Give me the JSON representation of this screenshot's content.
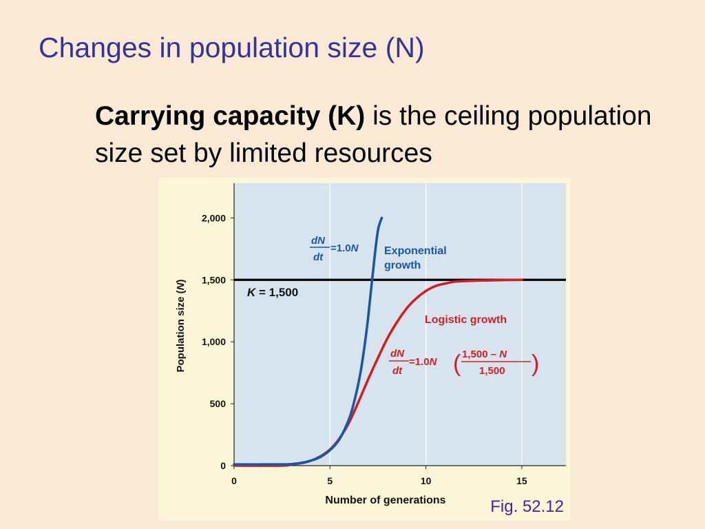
{
  "slide": {
    "title": "Changes in population size (N)",
    "body_bold": "Carrying capacity (K)",
    "body_rest": " is the ceiling population size set by limited resources",
    "figure_caption": "Fig. 52.12"
  },
  "colors": {
    "background": "#fae9d4",
    "title": "#33339a",
    "plot_bg": "#d7e4ee",
    "figure_bg": "#fcf6d8",
    "exponential": "#1a56a6",
    "logistic": "#d01e24",
    "capacity_line": "#000000",
    "caption": "#4a1f9a"
  },
  "chart_data": {
    "type": "line",
    "xlabel": "Number of generations",
    "ylabel_prefix": "Population size (",
    "ylabel_var": "N",
    "ylabel_suffix": ")",
    "xlim": [
      0,
      17.3
    ],
    "ylim": [
      0,
      2280
    ],
    "xticks": [
      0,
      5,
      10,
      15
    ],
    "yticks": [
      0,
      500,
      1000,
      1500,
      2000
    ],
    "xtick_labels": [
      "0",
      "5",
      "10",
      "15"
    ],
    "ytick_labels": [
      "0",
      "500",
      "1,000",
      "1,500",
      "2,000"
    ],
    "grid": "vertical lines at x ticks",
    "carrying_capacity": {
      "value": 1500,
      "label_var": "K",
      "label_rest": " = 1,500"
    },
    "series": [
      {
        "id": "exponential",
        "label_line1": "Exponential",
        "label_line2": "growth",
        "equation": {
          "num_d": "d",
          "num_var": "N",
          "den": "dt",
          "rhs": "=1.0",
          "rhs_var": "N"
        },
        "x": [
          0,
          2.5,
          3.0,
          3.5,
          4.0,
          4.5,
          5.0,
          5.5,
          6.0,
          6.3,
          6.6,
          6.9,
          7.1,
          7.3,
          7.5,
          7.7
        ],
        "y": [
          10,
          10,
          13,
          22,
          40,
          70,
          125,
          215,
          380,
          540,
          760,
          1080,
          1360,
          1650,
          1900,
          2000
        ]
      },
      {
        "id": "logistic",
        "label": "Logistic growth",
        "equation": {
          "num_d": "d",
          "num_var": "N",
          "den": "dt",
          "rhs": "=1.0",
          "rhs_var": "N",
          "frac_num": "1,500 – ",
          "frac_num_var": "N",
          "frac_den": "1,500"
        },
        "x": [
          0,
          2.5,
          3.0,
          3.5,
          4.0,
          4.5,
          5.0,
          5.5,
          6.0,
          6.5,
          7.0,
          7.5,
          8.0,
          8.5,
          9.0,
          9.5,
          10.0,
          10.5,
          11.0,
          11.5,
          12.0,
          13.0,
          14.0,
          15.0
        ],
        "y": [
          0,
          0,
          10,
          20,
          40,
          75,
          130,
          220,
          350,
          520,
          700,
          870,
          1030,
          1160,
          1270,
          1350,
          1410,
          1450,
          1470,
          1485,
          1490,
          1495,
          1498,
          1500
        ]
      }
    ]
  }
}
